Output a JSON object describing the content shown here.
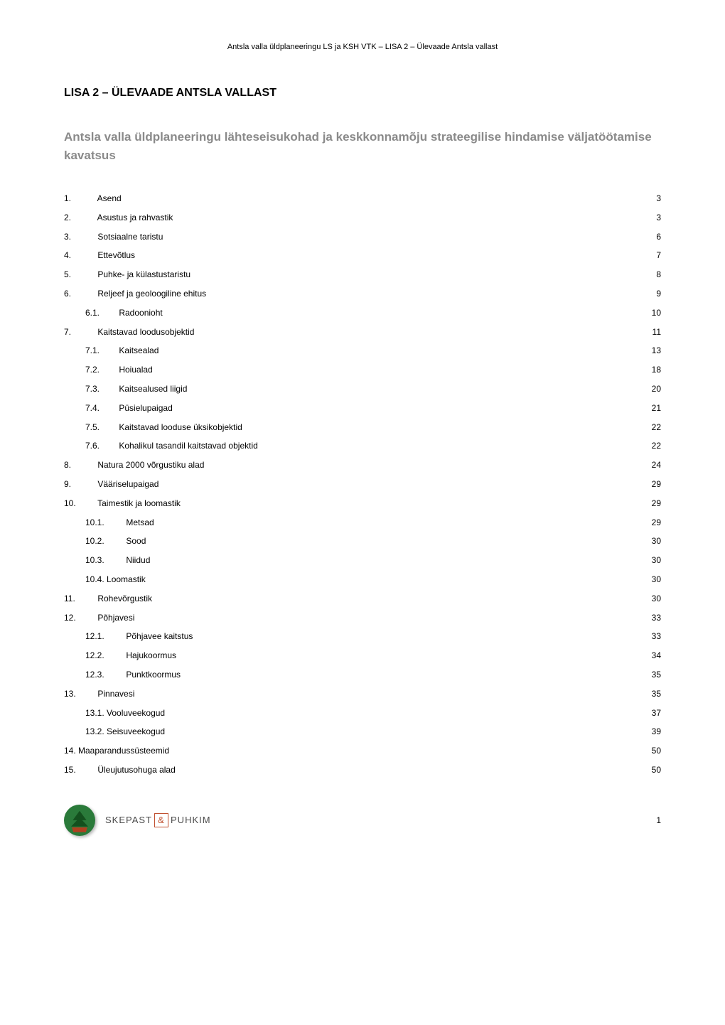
{
  "header": {
    "text": "Antsla valla üldplaneeringu LS ja KSH VTK – LISA 2 – Ülevaade Antsla vallast"
  },
  "title": "LISA 2 – ÜLEVAADE ANTSLA VALLAST",
  "subtitle": "Antsla valla üldplaneeringu lähteseisukohad ja keskkonnamõju strateegilise hindamise väljatöötamise kavatsus",
  "toc": [
    {
      "level": 1,
      "num": "1.",
      "label": "Asend",
      "page": "3"
    },
    {
      "level": 1,
      "num": "2.",
      "label": "Asustus ja rahvastik",
      "page": "3"
    },
    {
      "level": 1,
      "num": "3.",
      "label": "Sotsiaalne taristu",
      "page": "6"
    },
    {
      "level": 1,
      "num": "4.",
      "label": "Ettevõtlus",
      "page": "7"
    },
    {
      "level": 1,
      "num": "5.",
      "label": "Puhke- ja külastustaristu",
      "page": "8"
    },
    {
      "level": 1,
      "num": "6.",
      "label": "Reljeef ja geoloogiline ehitus",
      "page": "9"
    },
    {
      "level": 2,
      "num": "6.1.",
      "label": "Radoonioht",
      "page": "10"
    },
    {
      "level": 1,
      "num": "7.",
      "label": "Kaitstavad loodusobjektid",
      "page": "11"
    },
    {
      "level": 2,
      "num": "7.1.",
      "label": "Kaitsealad",
      "page": "13"
    },
    {
      "level": 2,
      "num": "7.2.",
      "label": "Hoiualad",
      "page": "18"
    },
    {
      "level": 2,
      "num": "7.3.",
      "label": "Kaitsealused liigid",
      "page": "20"
    },
    {
      "level": 2,
      "num": "7.4.",
      "label": "Püsielupaigad",
      "page": "21"
    },
    {
      "level": 2,
      "num": "7.5.",
      "label": "Kaitstavad looduse üksikobjektid",
      "page": "22"
    },
    {
      "level": 2,
      "num": "7.6.",
      "label": "Kohalikul tasandil kaitstavad objektid",
      "page": "22"
    },
    {
      "level": 1,
      "num": "8.",
      "label": "Natura 2000 võrgustiku alad",
      "page": "24"
    },
    {
      "level": 1,
      "num": "9.",
      "label": "Vääriselupaigad",
      "page": "29"
    },
    {
      "level": 1,
      "num": "10.",
      "label": "Taimestik ja loomastik",
      "page": "29"
    },
    {
      "level": 2,
      "num": "10.1.",
      "label": "Metsad",
      "page": "29"
    },
    {
      "level": 2,
      "num": "10.2.",
      "label": "Sood",
      "page": "30"
    },
    {
      "level": 2,
      "num": "10.3.",
      "label": "Niidud",
      "page": "30"
    },
    {
      "level": 2,
      "num": "",
      "label": "10.4. Loomastik",
      "page": "30"
    },
    {
      "level": 1,
      "num": "11.",
      "label": "Rohevõrgustik",
      "page": "30"
    },
    {
      "level": 1,
      "num": "12.",
      "label": "Põhjavesi",
      "page": "33"
    },
    {
      "level": 2,
      "num": "12.1.",
      "label": "Põhjavee kaitstus",
      "page": "33"
    },
    {
      "level": 2,
      "num": "12.2.",
      "label": "Hajukoormus",
      "page": "34"
    },
    {
      "level": 2,
      "num": "12.3.",
      "label": "Punktkoormus",
      "page": "35"
    },
    {
      "level": 1,
      "num": "13.",
      "label": "Pinnavesi",
      "page": "35"
    },
    {
      "level": 2,
      "num": "",
      "label": "13.1. Vooluveekogud",
      "page": "37"
    },
    {
      "level": 2,
      "num": "",
      "label": "13.2. Seisuveekogud",
      "page": "39"
    },
    {
      "level": 1,
      "num": "",
      "label": "14. Maaparandussüsteemid",
      "page": "50"
    },
    {
      "level": 1,
      "num": "15.",
      "label": "Üleujutusohuga alad",
      "page": "50"
    }
  ],
  "footer": {
    "company_part1": "SKEPAST",
    "company_symbol": "&",
    "company_part2": "PUHKIM",
    "page_number": "1"
  },
  "colors": {
    "text": "#000000",
    "subtitle": "#8a8a8a",
    "badge_bg": "#2a7a3a",
    "badge_tree": "#14501e",
    "badge_base": "#b04020",
    "box_border": "#c05030",
    "company_text": "#4a4a4a",
    "background": "#ffffff"
  }
}
